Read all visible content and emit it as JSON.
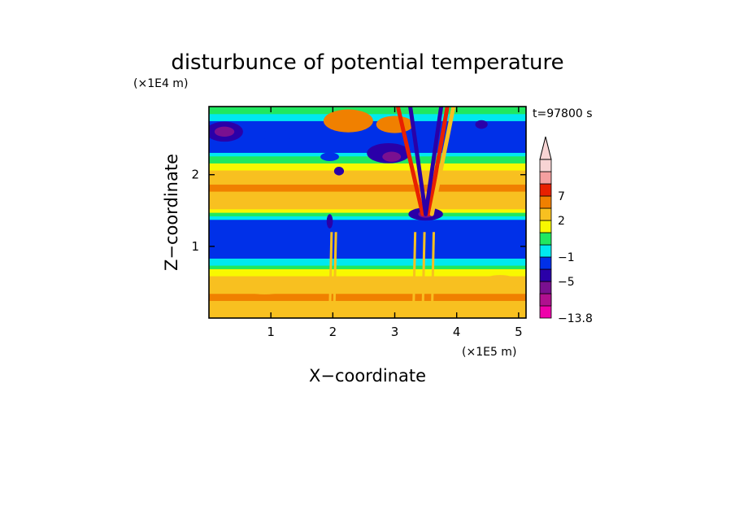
{
  "chart_data": {
    "type": "heatmap",
    "title": "disturbunce of potential temperature",
    "time_label": "t=97800 s",
    "xlabel": "X−coordinate",
    "ylabel": "Z−coordinate",
    "x_unit": "(×1E5 m)",
    "y_unit": "(×1E4 m)",
    "xlim": [
      0,
      5.12
    ],
    "ylim": [
      0,
      2.95
    ],
    "x_ticks": [
      {
        "value": 1,
        "label": "1"
      },
      {
        "value": 2,
        "label": "2"
      },
      {
        "value": 3,
        "label": "3"
      },
      {
        "value": 4,
        "label": "4"
      },
      {
        "value": 5,
        "label": "5"
      }
    ],
    "y_ticks": [
      {
        "value": 1,
        "label": "1"
      },
      {
        "value": 2,
        "label": "2"
      }
    ],
    "colorbar": {
      "levels": [
        {
          "min": -13.8,
          "color": "#ee00aa"
        },
        {
          "min": -9,
          "color": "#b0108f"
        },
        {
          "min": -7,
          "color": "#7a1090"
        },
        {
          "min": -5,
          "color": "#2a00a8"
        },
        {
          "min": -3,
          "color": "#0030e8"
        },
        {
          "min": -1,
          "color": "#00e8f0"
        },
        {
          "min": 0,
          "color": "#20e860"
        },
        {
          "min": 1,
          "color": "#f8f800"
        },
        {
          "min": 2,
          "color": "#f8c020"
        },
        {
          "min": 4,
          "color": "#f08000"
        },
        {
          "min": 7,
          "color": "#e82000"
        },
        {
          "min": 9,
          "color": "#f4a0a0"
        },
        {
          "min": 12,
          "color": "#f8d4d4"
        }
      ],
      "labels": [
        {
          "value": 7,
          "label": "7"
        },
        {
          "value": 2,
          "label": "2"
        },
        {
          "value": -1,
          "label": "−1"
        },
        {
          "value": -5,
          "label": "−5"
        },
        {
          "value": -13.8,
          "label": "−13.8"
        }
      ]
    },
    "features": [
      {
        "x": 0.25,
        "z": 2.6,
        "value": -3.5,
        "rx": 0.3,
        "rz": 0.14
      },
      {
        "x": 0.25,
        "z": 2.6,
        "value": -6,
        "rx": 0.16,
        "rz": 0.07
      },
      {
        "x": 1.1,
        "z": 2.55,
        "value": -1.5,
        "rx": 0.25,
        "rz": 0.08
      },
      {
        "x": 2.1,
        "z": 2.05,
        "value": -3.5,
        "rx": 0.08,
        "rz": 0.06
      },
      {
        "x": 1.95,
        "z": 2.25,
        "value": -1.5,
        "rx": 0.15,
        "rz": 0.06
      },
      {
        "x": 2.9,
        "z": 2.3,
        "value": -3.5,
        "rx": 0.35,
        "rz": 0.14
      },
      {
        "x": 2.95,
        "z": 2.25,
        "value": -6,
        "rx": 0.15,
        "rz": 0.07
      },
      {
        "x": 2.25,
        "z": 2.75,
        "value": 5,
        "rx": 0.4,
        "rz": 0.16
      },
      {
        "x": 3.0,
        "z": 2.7,
        "value": 5,
        "rx": 0.3,
        "rz": 0.12
      },
      {
        "x": 3.5,
        "z": 1.45,
        "value": -4,
        "rx": 0.28,
        "rz": 0.09
      },
      {
        "x": 3.5,
        "z": 1.45,
        "value": -6,
        "rx": 0.12,
        "rz": 0.05
      },
      {
        "x": 1.95,
        "z": 1.35,
        "value": -4,
        "rx": 0.05,
        "rz": 0.1
      },
      {
        "x": 4.4,
        "z": 2.7,
        "value": -3.5,
        "rx": 0.1,
        "rz": 0.06
      },
      {
        "x": 0.9,
        "z": 0.45,
        "value": 3,
        "rx": 0.4,
        "rz": 0.12
      },
      {
        "x": 2.5,
        "z": 0.45,
        "value": 3,
        "rx": 0.35,
        "rz": 0.1
      },
      {
        "x": 4.7,
        "z": 0.5,
        "value": 3,
        "rx": 0.3,
        "rz": 0.1
      }
    ]
  }
}
